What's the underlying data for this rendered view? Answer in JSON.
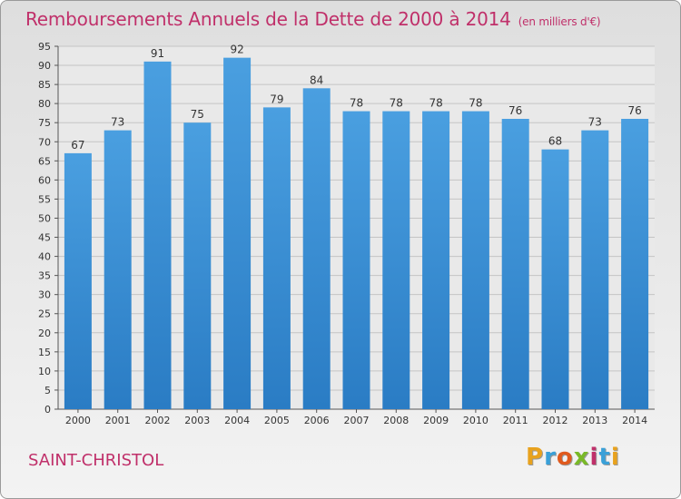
{
  "header": {
    "title": "Remboursements Annuels de la Dette de 2000 à 2014",
    "unit": "(en milliers d'€)"
  },
  "footer": {
    "commune": "SAINT-CHRISTOL",
    "logo_text": "Proxiti",
    "logo_colors": [
      "#e8a21e",
      "#3aa0d8",
      "#e05a1e",
      "#79b928",
      "#c0306a",
      "#3aa0d8",
      "#e8a21e"
    ]
  },
  "colors": {
    "bar": "#4a9fe0",
    "bar_dark": "#2a7cc4",
    "grid": "#c4c4c4",
    "title": "#c0306a"
  },
  "chart_data": {
    "type": "bar",
    "title": "Remboursements Annuels de la Dette de 2000 à 2014",
    "categories": [
      "2000",
      "2001",
      "2002",
      "2003",
      "2004",
      "2005",
      "2006",
      "2007",
      "2008",
      "2009",
      "2010",
      "2011",
      "2012",
      "2013",
      "2014"
    ],
    "values": [
      67,
      73,
      91,
      75,
      92,
      79,
      84,
      78,
      78,
      78,
      78,
      76,
      68,
      73,
      76
    ],
    "ylim": [
      0,
      95
    ],
    "yticks": [
      0,
      5,
      10,
      15,
      20,
      25,
      30,
      35,
      40,
      45,
      50,
      55,
      60,
      65,
      70,
      75,
      80,
      85,
      90,
      95
    ],
    "grid": true
  }
}
